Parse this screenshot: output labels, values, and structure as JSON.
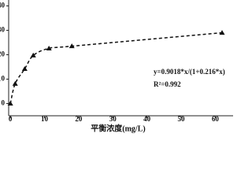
{
  "chart_data": {
    "type": "scatter",
    "x_label": "平衡浓度(mg/L)",
    "annotations": [
      "y=0.9018*x/(1+0.216*x)",
      "R²=0.992"
    ],
    "x": [
      0,
      1.4,
      4.2,
      6.7,
      11.3,
      18,
      62
    ],
    "values": [
      0,
      8.1,
      14.2,
      19.7,
      22.6,
      23.5,
      29.0
    ],
    "color": "#111111",
    "fit_line": true,
    "xlim": [
      -0.5,
      65
    ],
    "xticks": [
      0,
      10,
      20,
      30,
      40,
      50,
      60
    ],
    "ylim": [
      -5,
      42
    ],
    "yticks": [
      0,
      10,
      20,
      30,
      40
    ]
  }
}
